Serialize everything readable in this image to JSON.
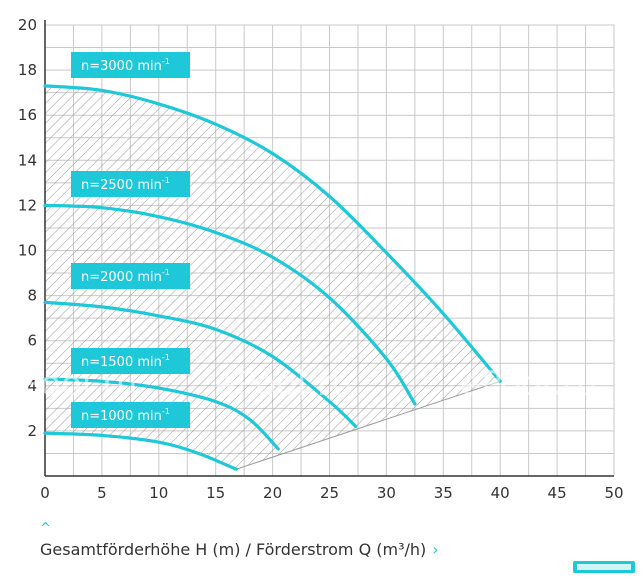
{
  "chart_data": {
    "type": "line",
    "title": "",
    "xlabel": "Gesamtförderhöhe H (m) / Förderstrom Q (m³/h)",
    "ylabel": "",
    "xlim": [
      0,
      50
    ],
    "ylim": [
      0,
      20
    ],
    "x_ticks": [
      0,
      5,
      10,
      15,
      20,
      25,
      30,
      35,
      40,
      45,
      50
    ],
    "y_ticks": [
      2,
      4,
      6,
      8,
      10,
      12,
      14,
      16,
      18,
      20
    ],
    "grid": true,
    "minor_grid_step_x": 2.5,
    "minor_grid_step_y": 1,
    "hatched_region": "operating range under the 3000 min⁻¹ curve",
    "series": [
      {
        "name": "n=3000 min⁻¹",
        "label_base": "n=3000 min",
        "label_sup": "-1",
        "x": [
          0,
          5,
          10,
          15,
          20,
          25,
          30,
          35,
          40
        ],
        "y": [
          17.3,
          17.1,
          16.5,
          15.6,
          14.3,
          12.4,
          9.9,
          7.2,
          4.2
        ]
      },
      {
        "name": "n=2500 min⁻¹",
        "label_base": "n=2500 min",
        "label_sup": "-1",
        "x": [
          0,
          5,
          10,
          15,
          20,
          25,
          30,
          32.5
        ],
        "y": [
          12.0,
          11.9,
          11.5,
          10.8,
          9.7,
          7.9,
          5.2,
          3.2
        ]
      },
      {
        "name": "n=2000 min⁻¹",
        "label_base": "n=2000 min",
        "label_sup": "-1",
        "x": [
          0,
          5,
          10,
          15,
          20,
          25,
          27.3
        ],
        "y": [
          7.7,
          7.5,
          7.1,
          6.5,
          5.3,
          3.3,
          2.2
        ]
      },
      {
        "name": "n=1500 min⁻¹",
        "label_base": "n=1500 min",
        "label_sup": "-1",
        "x": [
          0,
          5,
          10,
          15,
          18,
          20.5
        ],
        "y": [
          4.3,
          4.2,
          3.9,
          3.3,
          2.5,
          1.2
        ]
      },
      {
        "name": "n=1000 min⁻¹",
        "label_base": "n=1000 min",
        "label_sup": "-1",
        "x": [
          0,
          5,
          10,
          13.5,
          16.8
        ],
        "y": [
          1.9,
          1.8,
          1.5,
          1.0,
          0.3
        ]
      }
    ]
  },
  "colors": {
    "curve": "#1ec8d8",
    "label_bg": "#1ec8d8",
    "grid": "#c9c9c9",
    "hatch": "#9a9a9a",
    "axis": "#333333"
  },
  "watermark_text": "ePool.ru",
  "icons": {
    "caret": "chevron-up-icon",
    "arrow": "chevron-right-icon"
  }
}
